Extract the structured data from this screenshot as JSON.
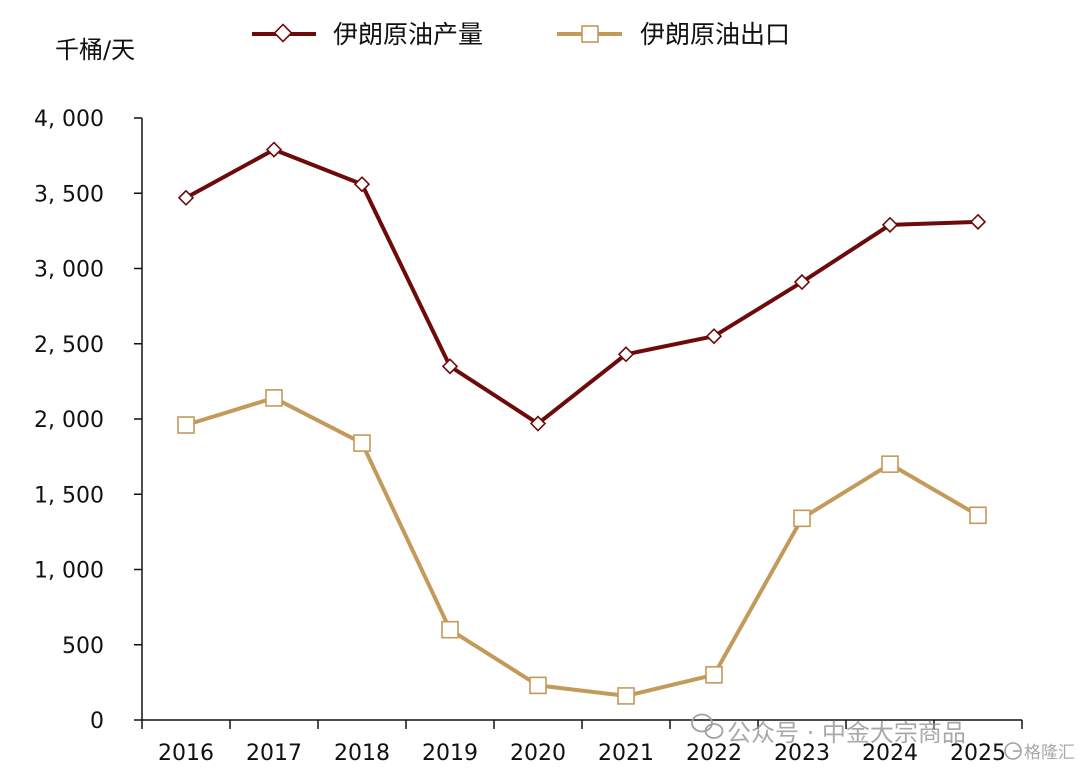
{
  "chart_data": {
    "type": "line",
    "title": "",
    "xlabel": "",
    "ylabel": "千桶/天",
    "categories": [
      "2016",
      "2017",
      "2018",
      "2019",
      "2020",
      "2021",
      "2022",
      "2023",
      "2024",
      "2025"
    ],
    "ylim": [
      0,
      4000
    ],
    "yticks": [
      0,
      500,
      1000,
      1500,
      2000,
      2500,
      3000,
      3500,
      4000
    ],
    "ytick_labels": [
      "0",
      "500",
      "1, 000",
      "1, 500",
      "2, 000",
      "2, 500",
      "3, 000",
      "3, 500",
      "4, 000"
    ],
    "grid": false,
    "legend_position": "top",
    "series": [
      {
        "name": "伊朗原油产量",
        "color": "#6e0a0a",
        "marker": "diamond",
        "values": [
          3470,
          3790,
          3560,
          2350,
          1970,
          2430,
          2550,
          2910,
          3290,
          3310
        ]
      },
      {
        "name": "伊朗原油出口",
        "color": "#c49a5a",
        "marker": "square",
        "values": [
          1960,
          2140,
          1840,
          600,
          230,
          160,
          300,
          1340,
          1700,
          1360
        ]
      }
    ]
  },
  "watermark": {
    "text": "公众号 · 中金大宗商品",
    "corner": "格隆汇",
    "icon": "wechat-icon"
  }
}
